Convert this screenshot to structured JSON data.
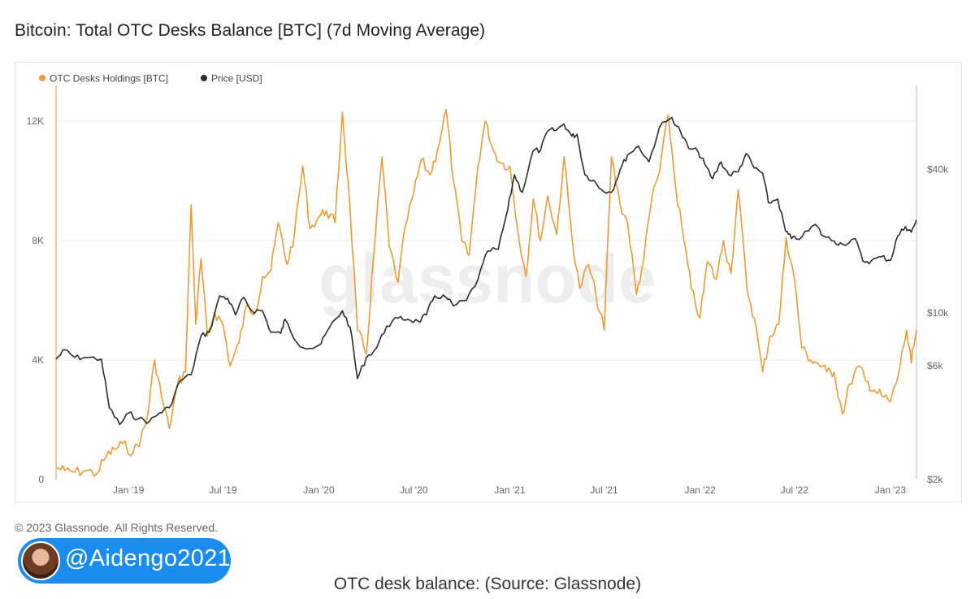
{
  "page_title": "Bitcoin: Total OTC Desks Balance [BTC] (7d Moving Average)",
  "copyright": "© 2023 Glassnode. All Rights Reserved.",
  "watermark": "glassnode",
  "badge": {
    "handle": "@Aidengo2021",
    "avatar_icon": "avatar-photo"
  },
  "caption": "OTC desk balance: (Source: Glassnode)",
  "colors": {
    "holdings": "#f09a36",
    "price": "#2b2b2b",
    "grid": "#eeeeee",
    "axis_text": "#666666"
  },
  "chart_data": {
    "type": "line",
    "title": "Bitcoin: Total OTC Desks Balance [BTC] (7d Moving Average)",
    "legend_position": "top-left",
    "grid": true,
    "x_ticks": [
      "Jan '19",
      "Jul '19",
      "Jan '20",
      "Jul '20",
      "Jan '21",
      "Jul '21",
      "Jan '22",
      "Jul '22",
      "Jan '23"
    ],
    "x_range": [
      "2018-08-15",
      "2023-02-20"
    ],
    "y_left": {
      "ticks": [
        "0",
        "4K",
        "8K",
        "12K"
      ],
      "tick_values": [
        0,
        4000,
        8000,
        12000
      ],
      "range": [
        0,
        13200
      ]
    },
    "y_right": {
      "scale": "log",
      "ticks": [
        "$2k",
        "$6k",
        "$10k",
        "$40k"
      ],
      "tick_values": [
        2000,
        6000,
        10000,
        40000
      ],
      "range": [
        2000,
        90000
      ]
    },
    "series": [
      {
        "name": "OTC Desks Holdings [BTC]",
        "axis": "left",
        "points": [
          [
            "2018-08-15",
            400
          ],
          [
            "2018-09-01",
            300
          ],
          [
            "2018-09-20",
            250
          ],
          [
            "2018-10-10",
            300
          ],
          [
            "2018-11-01",
            200
          ],
          [
            "2018-11-20",
            800
          ],
          [
            "2018-12-05",
            1000
          ],
          [
            "2018-12-20",
            1200
          ],
          [
            "2019-01-10",
            900
          ],
          [
            "2019-01-25",
            1400
          ],
          [
            "2019-02-05",
            2000
          ],
          [
            "2019-02-20",
            4000
          ],
          [
            "2019-03-05",
            2800
          ],
          [
            "2019-03-20",
            1700
          ],
          [
            "2019-04-05",
            3200
          ],
          [
            "2019-04-20",
            3600
          ],
          [
            "2019-05-01",
            9200
          ],
          [
            "2019-05-10",
            5200
          ],
          [
            "2019-05-20",
            7400
          ],
          [
            "2019-06-01",
            4800
          ],
          [
            "2019-06-15",
            5600
          ],
          [
            "2019-07-01",
            5200
          ],
          [
            "2019-07-15",
            3800
          ],
          [
            "2019-08-01",
            4600
          ],
          [
            "2019-08-15",
            5800
          ],
          [
            "2019-09-01",
            5600
          ],
          [
            "2019-09-15",
            6800
          ],
          [
            "2019-10-01",
            7000
          ],
          [
            "2019-10-15",
            8600
          ],
          [
            "2019-11-01",
            7200
          ],
          [
            "2019-11-15",
            8200
          ],
          [
            "2019-12-01",
            10500
          ],
          [
            "2019-12-15",
            8400
          ],
          [
            "2020-01-01",
            8800
          ],
          [
            "2020-01-15",
            9000
          ],
          [
            "2020-02-01",
            8600
          ],
          [
            "2020-02-15",
            12300
          ],
          [
            "2020-03-01",
            9000
          ],
          [
            "2020-03-15",
            5000
          ],
          [
            "2020-04-01",
            4200
          ],
          [
            "2020-04-15",
            7500
          ],
          [
            "2020-05-01",
            10800
          ],
          [
            "2020-05-15",
            7800
          ],
          [
            "2020-06-01",
            6600
          ],
          [
            "2020-06-15",
            8500
          ],
          [
            "2020-07-01",
            9600
          ],
          [
            "2020-07-15",
            10700
          ],
          [
            "2020-08-01",
            10200
          ],
          [
            "2020-08-15",
            11000
          ],
          [
            "2020-09-01",
            12400
          ],
          [
            "2020-09-15",
            10000
          ],
          [
            "2020-10-01",
            8000
          ],
          [
            "2020-10-15",
            7500
          ],
          [
            "2020-11-01",
            10500
          ],
          [
            "2020-11-15",
            12000
          ],
          [
            "2020-12-01",
            11000
          ],
          [
            "2020-12-15",
            10600
          ],
          [
            "2021-01-01",
            10500
          ],
          [
            "2021-01-15",
            8500
          ],
          [
            "2021-02-01",
            6800
          ],
          [
            "2021-02-15",
            9400
          ],
          [
            "2021-03-01",
            8000
          ],
          [
            "2021-03-15",
            9500
          ],
          [
            "2021-04-01",
            8200
          ],
          [
            "2021-04-15",
            10800
          ],
          [
            "2021-05-01",
            8000
          ],
          [
            "2021-05-15",
            6400
          ],
          [
            "2021-06-01",
            7200
          ],
          [
            "2021-06-15",
            6200
          ],
          [
            "2021-07-01",
            5000
          ],
          [
            "2021-07-15",
            10800
          ],
          [
            "2021-08-01",
            9200
          ],
          [
            "2021-08-15",
            8600
          ],
          [
            "2021-09-01",
            6200
          ],
          [
            "2021-09-15",
            7400
          ],
          [
            "2021-10-01",
            9500
          ],
          [
            "2021-10-15",
            10300
          ],
          [
            "2021-11-01",
            12200
          ],
          [
            "2021-11-15",
            9800
          ],
          [
            "2021-12-01",
            8000
          ],
          [
            "2021-12-15",
            6400
          ],
          [
            "2022-01-01",
            5400
          ],
          [
            "2022-01-15",
            7300
          ],
          [
            "2022-02-01",
            6700
          ],
          [
            "2022-02-15",
            8000
          ],
          [
            "2022-03-01",
            6900
          ],
          [
            "2022-03-15",
            9700
          ],
          [
            "2022-04-01",
            6400
          ],
          [
            "2022-04-15",
            5400
          ],
          [
            "2022-05-01",
            3600
          ],
          [
            "2022-05-15",
            4800
          ],
          [
            "2022-06-01",
            5200
          ],
          [
            "2022-06-15",
            8100
          ],
          [
            "2022-07-01",
            6700
          ],
          [
            "2022-07-15",
            4400
          ],
          [
            "2022-08-01",
            4000
          ],
          [
            "2022-08-15",
            3900
          ],
          [
            "2022-09-01",
            3600
          ],
          [
            "2022-09-15",
            3600
          ],
          [
            "2022-10-01",
            2200
          ],
          [
            "2022-10-15",
            3200
          ],
          [
            "2022-11-01",
            3800
          ],
          [
            "2022-11-15",
            3300
          ],
          [
            "2022-12-01",
            3000
          ],
          [
            "2022-12-15",
            2800
          ],
          [
            "2023-01-01",
            2600
          ],
          [
            "2023-01-15",
            3400
          ],
          [
            "2023-02-01",
            5000
          ],
          [
            "2023-02-10",
            3900
          ],
          [
            "2023-02-20",
            5000
          ]
        ]
      },
      {
        "name": "Price [USD]",
        "axis": "right",
        "points": [
          [
            "2018-08-15",
            6400
          ],
          [
            "2018-09-01",
            7000
          ],
          [
            "2018-09-20",
            6500
          ],
          [
            "2018-10-10",
            6500
          ],
          [
            "2018-11-10",
            6400
          ],
          [
            "2018-11-25",
            4000
          ],
          [
            "2018-12-15",
            3400
          ],
          [
            "2019-01-01",
            3800
          ],
          [
            "2019-01-20",
            3600
          ],
          [
            "2019-02-10",
            3500
          ],
          [
            "2019-03-01",
            3800
          ],
          [
            "2019-03-20",
            4000
          ],
          [
            "2019-04-10",
            5200
          ],
          [
            "2019-05-01",
            5500
          ],
          [
            "2019-05-20",
            8000
          ],
          [
            "2019-06-05",
            8300
          ],
          [
            "2019-06-25",
            11800
          ],
          [
            "2019-07-10",
            11500
          ],
          [
            "2019-07-25",
            9800
          ],
          [
            "2019-08-10",
            11600
          ],
          [
            "2019-08-25",
            10200
          ],
          [
            "2019-09-15",
            10200
          ],
          [
            "2019-10-01",
            8300
          ],
          [
            "2019-10-20",
            8200
          ],
          [
            "2019-10-28",
            9400
          ],
          [
            "2019-11-20",
            7500
          ],
          [
            "2019-12-15",
            7100
          ],
          [
            "2020-01-05",
            7400
          ],
          [
            "2020-01-20",
            8600
          ],
          [
            "2020-02-15",
            10200
          ],
          [
            "2020-03-01",
            8700
          ],
          [
            "2020-03-15",
            5300
          ],
          [
            "2020-04-01",
            6500
          ],
          [
            "2020-04-20",
            7100
          ],
          [
            "2020-05-10",
            8800
          ],
          [
            "2020-06-01",
            9500
          ],
          [
            "2020-06-20",
            9400
          ],
          [
            "2020-07-10",
            9200
          ],
          [
            "2020-07-25",
            9800
          ],
          [
            "2020-08-10",
            11800
          ],
          [
            "2020-09-01",
            11600
          ],
          [
            "2020-09-15",
            10700
          ],
          [
            "2020-10-10",
            11300
          ],
          [
            "2020-11-01",
            13800
          ],
          [
            "2020-11-20",
            18200
          ],
          [
            "2020-12-10",
            18500
          ],
          [
            "2020-12-28",
            27000
          ],
          [
            "2021-01-10",
            38000
          ],
          [
            "2021-01-25",
            32000
          ],
          [
            "2021-02-15",
            48000
          ],
          [
            "2021-03-01",
            48000
          ],
          [
            "2021-03-15",
            58000
          ],
          [
            "2021-04-01",
            58500
          ],
          [
            "2021-04-15",
            62000
          ],
          [
            "2021-04-30",
            55000
          ],
          [
            "2021-05-10",
            56000
          ],
          [
            "2021-05-25",
            38000
          ],
          [
            "2021-06-10",
            36000
          ],
          [
            "2021-06-25",
            33000
          ],
          [
            "2021-07-15",
            32000
          ],
          [
            "2021-08-01",
            40000
          ],
          [
            "2021-08-15",
            46000
          ],
          [
            "2021-09-05",
            50000
          ],
          [
            "2021-09-25",
            43000
          ],
          [
            "2021-10-15",
            60000
          ],
          [
            "2021-11-08",
            66000
          ],
          [
            "2021-11-25",
            57000
          ],
          [
            "2021-12-10",
            49000
          ],
          [
            "2021-12-28",
            47500
          ],
          [
            "2022-01-10",
            42000
          ],
          [
            "2022-01-25",
            36500
          ],
          [
            "2022-02-10",
            43000
          ],
          [
            "2022-02-25",
            38000
          ],
          [
            "2022-03-15",
            39000
          ],
          [
            "2022-03-30",
            46500
          ],
          [
            "2022-04-15",
            40500
          ],
          [
            "2022-05-01",
            38500
          ],
          [
            "2022-05-12",
            29000
          ],
          [
            "2022-05-30",
            30000
          ],
          [
            "2022-06-14",
            22000
          ],
          [
            "2022-06-25",
            20500
          ],
          [
            "2022-07-15",
            20800
          ],
          [
            "2022-08-10",
            23500
          ],
          [
            "2022-08-25",
            21000
          ],
          [
            "2022-09-15",
            20000
          ],
          [
            "2022-10-01",
            19400
          ],
          [
            "2022-10-25",
            20500
          ],
          [
            "2022-11-09",
            16500
          ],
          [
            "2022-11-25",
            16500
          ],
          [
            "2022-12-15",
            17200
          ],
          [
            "2023-01-01",
            16600
          ],
          [
            "2023-01-15",
            21000
          ],
          [
            "2023-01-30",
            23000
          ],
          [
            "2023-02-10",
            21800
          ],
          [
            "2023-02-20",
            24500
          ]
        ]
      }
    ]
  }
}
